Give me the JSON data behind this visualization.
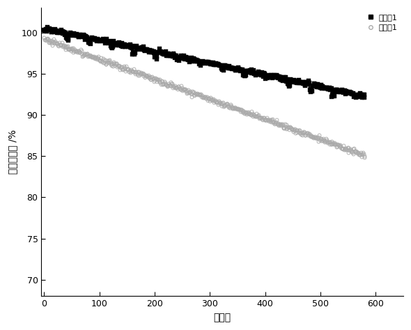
{
  "title": "",
  "xlabel": "循环数",
  "ylabel": "容量保持率 /%",
  "xlim": [
    -5,
    650
  ],
  "ylim": [
    68,
    103
  ],
  "xticks": [
    0,
    100,
    200,
    300,
    400,
    500,
    600
  ],
  "yticks": [
    70,
    75,
    80,
    85,
    90,
    95,
    100
  ],
  "series1_label": "实施例1",
  "series2_label": "对比例1",
  "series1_color": "#000000",
  "series2_color": "#aaaaaa",
  "series1_start": 100.5,
  "series1_end": 92.3,
  "series2_start": 99.2,
  "series2_end": 85.1,
  "n_cycles": 580,
  "background_color": "#ffffff",
  "legend_fontsize": 8,
  "axis_fontsize": 10,
  "tick_fontsize": 9
}
